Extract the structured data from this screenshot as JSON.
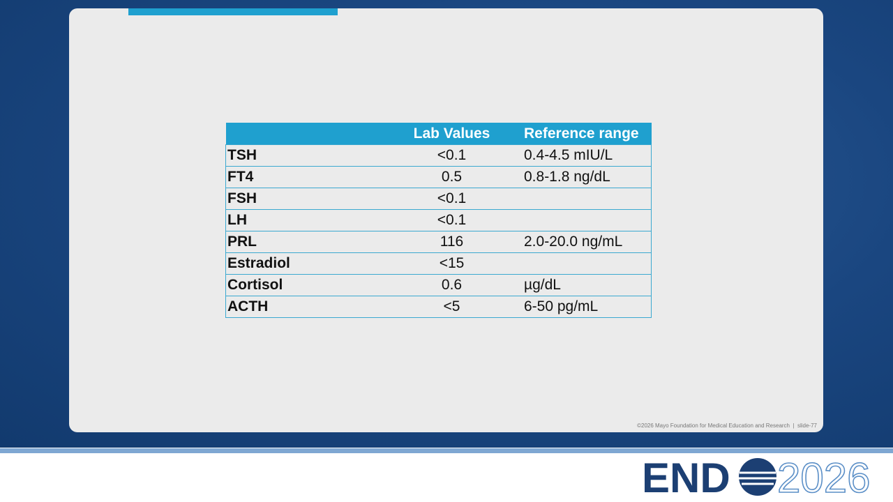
{
  "table": {
    "header": [
      "Lab Values",
      "Reference range"
    ],
    "rows": [
      {
        "test": "TSH",
        "value": "<0.1",
        "reference": "0.4-4.5 mIU/L"
      },
      {
        "test": "FT4",
        "value": "0.5",
        "reference": "0.8-1.8 ng/dL"
      },
      {
        "test": "FSH",
        "value": "<0.1"
      },
      {
        "test": "LH",
        "value": "<0.1"
      },
      {
        "test": "PRL",
        "value": "116",
        "reference": "2.0-20.0 ng/mL"
      },
      {
        "test": "Estradiol",
        "value": "<15"
      },
      {
        "test": "Cortisol",
        "value": "0.6",
        "reference": "µg/dL"
      },
      {
        "test": "ACTH",
        "value": "<5",
        "reference": "6-50 pg/mL"
      }
    ]
  },
  "footer": {
    "copyright": "©2026 Mayo Foundation for Medical Education and Research  |  slide-77"
  },
  "logo": {
    "word": "END",
    "year": "2026"
  }
}
